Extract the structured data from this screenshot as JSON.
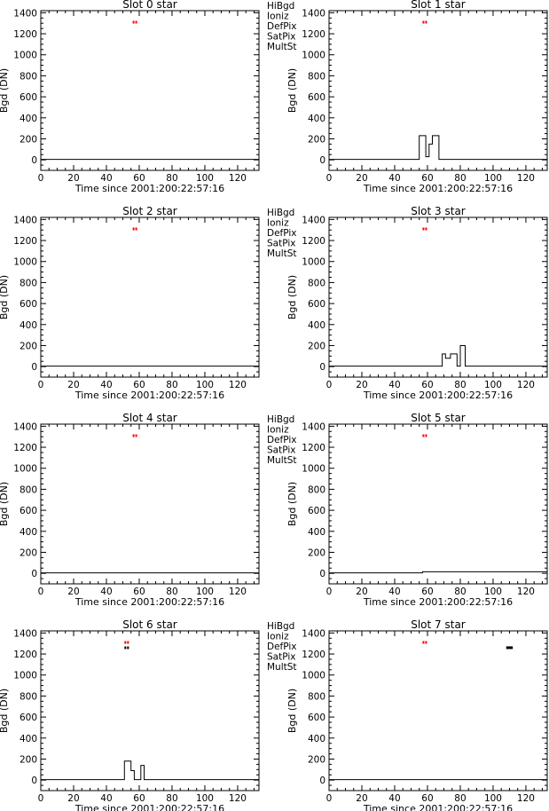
{
  "figure": {
    "colors": {
      "axis": "#000000",
      "HiBgd": "#ff0000",
      "Ioniz": "#000000",
      "DefPix": "#00d000",
      "SatPix": "#0000cc",
      "MultSt": "#b050c8"
    },
    "legend_labels": [
      "HiBgd",
      "Ioniz",
      "DefPix",
      "SatPix",
      "MultSt"
    ]
  },
  "chart_data": [
    {
      "type": "line",
      "title": "Slot 0 star",
      "xlabel": "Time since 2001:200:22:57:16",
      "ylabel": "Bgd (DN)",
      "xlim": [
        0,
        133
      ],
      "ylim": [
        -100,
        1420
      ],
      "xticks": [
        0,
        20,
        40,
        60,
        80,
        100,
        120
      ],
      "yticks": [
        0,
        200,
        400,
        600,
        800,
        1000,
        1200,
        1400
      ],
      "legend": [
        "HiBgd",
        "Ioniz",
        "DefPix",
        "SatPix",
        "MultSt"
      ],
      "series": [
        {
          "x": [
            0,
            133
          ],
          "y": [
            5,
            5
          ]
        }
      ],
      "flags": [
        {
          "color": "HiBgd",
          "y": 1310,
          "x": [
            56,
            59
          ]
        }
      ]
    },
    {
      "type": "line",
      "title": "Slot 1 star",
      "xlabel": "Time since 2001:200:22:57:16",
      "ylabel": "Bgd (DN)",
      "xlim": [
        0,
        133
      ],
      "ylim": [
        -100,
        1420
      ],
      "xticks": [
        0,
        20,
        40,
        60,
        80,
        100,
        120
      ],
      "yticks": [
        0,
        200,
        400,
        600,
        800,
        1000,
        1200,
        1400
      ],
      "legend": [],
      "series": [
        {
          "x": [
            0,
            55,
            55,
            59,
            59,
            61,
            61,
            63,
            63,
            67,
            67,
            133
          ],
          "y": [
            5,
            5,
            230,
            230,
            30,
            30,
            150,
            150,
            230,
            230,
            5,
            5
          ]
        }
      ],
      "flags": [
        {
          "color": "HiBgd",
          "y": 1310,
          "x": [
            57,
            60
          ]
        }
      ]
    },
    {
      "type": "line",
      "title": "Slot 2 star",
      "xlabel": "Time since 2001:200:22:57:16",
      "ylabel": "Bgd (DN)",
      "xlim": [
        0,
        133
      ],
      "ylim": [
        -100,
        1420
      ],
      "xticks": [
        0,
        20,
        40,
        60,
        80,
        100,
        120
      ],
      "yticks": [
        0,
        200,
        400,
        600,
        800,
        1000,
        1200,
        1400
      ],
      "legend": [
        "HiBgd",
        "Ioniz",
        "DefPix",
        "SatPix",
        "MultSt"
      ],
      "series": [
        {
          "x": [
            0,
            133
          ],
          "y": [
            5,
            5
          ]
        }
      ],
      "flags": [
        {
          "color": "HiBgd",
          "y": 1310,
          "x": [
            56,
            59
          ]
        }
      ]
    },
    {
      "type": "line",
      "title": "Slot 3 star",
      "xlabel": "Time since 2001:200:22:57:16",
      "ylabel": "Bgd (DN)",
      "xlim": [
        0,
        133
      ],
      "ylim": [
        -100,
        1420
      ],
      "xticks": [
        0,
        20,
        40,
        60,
        80,
        100,
        120
      ],
      "yticks": [
        0,
        200,
        400,
        600,
        800,
        1000,
        1200,
        1400
      ],
      "legend": [],
      "series": [
        {
          "x": [
            0,
            69,
            69,
            71,
            71,
            74,
            74,
            78,
            78,
            80,
            80,
            83,
            83,
            133
          ],
          "y": [
            5,
            5,
            120,
            120,
            80,
            80,
            120,
            120,
            5,
            5,
            200,
            200,
            5,
            5
          ]
        }
      ],
      "flags": [
        {
          "color": "HiBgd",
          "y": 1310,
          "x": [
            57,
            60
          ]
        }
      ]
    },
    {
      "type": "line",
      "title": "Slot 4 star",
      "xlabel": "Time since 2001:200:22:57:16",
      "ylabel": "Bgd (DN)",
      "xlim": [
        0,
        133
      ],
      "ylim": [
        -100,
        1420
      ],
      "xticks": [
        0,
        20,
        40,
        60,
        80,
        100,
        120
      ],
      "yticks": [
        0,
        200,
        400,
        600,
        800,
        1000,
        1200,
        1400
      ],
      "legend": [
        "HiBgd",
        "Ioniz",
        "DefPix",
        "SatPix",
        "MultSt"
      ],
      "series": [
        {
          "x": [
            0,
            133
          ],
          "y": [
            5,
            5
          ]
        }
      ],
      "flags": [
        {
          "color": "HiBgd",
          "y": 1310,
          "x": [
            56,
            59
          ]
        }
      ]
    },
    {
      "type": "line",
      "title": "Slot 5 star",
      "xlabel": "Time since 2001:200:22:57:16",
      "ylabel": "Bgd (DN)",
      "xlim": [
        0,
        133
      ],
      "ylim": [
        -100,
        1420
      ],
      "xticks": [
        0,
        20,
        40,
        60,
        80,
        100,
        120
      ],
      "yticks": [
        0,
        200,
        400,
        600,
        800,
        1000,
        1200,
        1400
      ],
      "legend": [],
      "series": [
        {
          "x": [
            0,
            57,
            57,
            133
          ],
          "y": [
            5,
            5,
            15,
            15
          ]
        }
      ],
      "flags": [
        {
          "color": "HiBgd",
          "y": 1310,
          "x": [
            57,
            60
          ]
        }
      ]
    },
    {
      "type": "line",
      "title": "Slot 6 star",
      "xlabel": "Time since 2001:200:22:57:16",
      "ylabel": "Bgd (DN)",
      "xlim": [
        0,
        133
      ],
      "ylim": [
        -100,
        1420
      ],
      "xticks": [
        0,
        20,
        40,
        60,
        80,
        100,
        120
      ],
      "yticks": [
        0,
        200,
        400,
        600,
        800,
        1000,
        1200,
        1400
      ],
      "legend": [
        "HiBgd",
        "Ioniz",
        "DefPix",
        "SatPix",
        "MultSt"
      ],
      "series": [
        {
          "x": [
            0,
            51,
            51,
            55,
            55,
            57,
            57,
            61,
            61,
            63,
            63,
            133
          ],
          "y": [
            5,
            5,
            180,
            180,
            90,
            90,
            5,
            5,
            140,
            140,
            5,
            5
          ]
        }
      ],
      "flags": [
        {
          "color": "HiBgd",
          "y": 1310,
          "x": [
            51,
            54
          ]
        },
        {
          "color": "Ioniz",
          "y": 1260,
          "x": [
            51,
            54
          ]
        }
      ]
    },
    {
      "type": "line",
      "title": "Slot 7 star",
      "xlabel": "Time since 2001:200:22:57:16",
      "ylabel": "Bgd (DN)",
      "xlim": [
        0,
        133
      ],
      "ylim": [
        -100,
        1420
      ],
      "xticks": [
        0,
        20,
        40,
        60,
        80,
        100,
        120
      ],
      "yticks": [
        0,
        200,
        400,
        600,
        800,
        1000,
        1200,
        1400
      ],
      "legend": [],
      "series": [
        {
          "x": [
            0,
            133
          ],
          "y": [
            5,
            5
          ]
        }
      ],
      "flags": [
        {
          "color": "HiBgd",
          "y": 1310,
          "x": [
            57,
            60
          ]
        },
        {
          "color": "Ioniz",
          "y": 1260,
          "x": [
            108,
            112
          ]
        }
      ]
    }
  ]
}
